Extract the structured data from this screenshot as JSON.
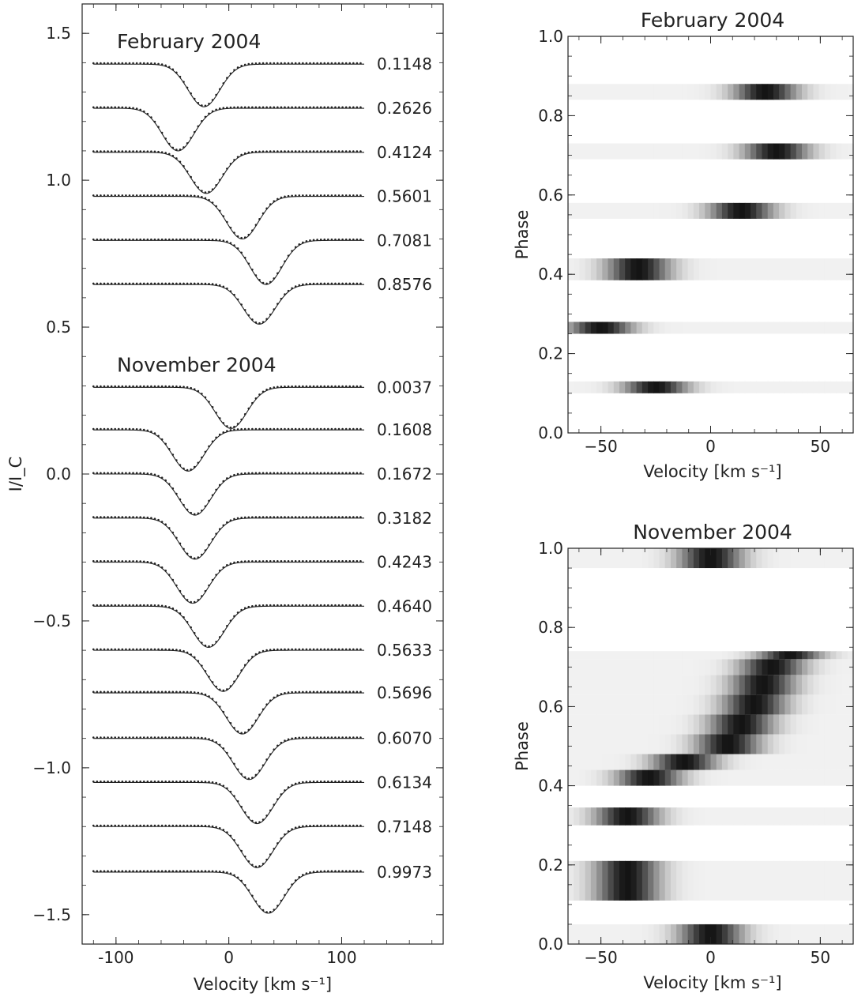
{
  "chart_data": [
    {
      "type": "line",
      "title": "",
      "xlabel": "Velocity [km s⁻¹]",
      "ylabel": "I/I_C",
      "xlim": [
        -130,
        190
      ],
      "ylim": [
        -1.6,
        1.6
      ],
      "x_ticks": [
        -100,
        0,
        100
      ],
      "y_ticks": [
        1.5,
        1.0,
        0.5,
        0.0,
        -0.5,
        -1.0,
        -1.5
      ],
      "y_tick_labels": [
        "1.5",
        "1.0",
        "0.5",
        "0.0",
        "−0.5",
        "−1.0",
        "−1.5"
      ],
      "grid": false,
      "profile_sigma_kms": 14,
      "groups": [
        {
          "label": "February 2004",
          "series": [
            {
              "name": "0.1148",
              "continuum": 1.395,
              "center": -22,
              "depth": 0.145
            },
            {
              "name": "0.2626",
              "continuum": 1.245,
              "center": -45,
              "depth": 0.145
            },
            {
              "name": "0.4124",
              "continuum": 1.095,
              "center": -20,
              "depth": 0.14
            },
            {
              "name": "0.5601",
              "continuum": 0.945,
              "center": 12,
              "depth": 0.145
            },
            {
              "name": "0.7081",
              "continuum": 0.795,
              "center": 33,
              "depth": 0.15
            },
            {
              "name": "0.8576",
              "continuum": 0.645,
              "center": 27,
              "depth": 0.135
            }
          ]
        },
        {
          "label": "November 2004",
          "series": [
            {
              "name": "0.0037",
              "continuum": 0.295,
              "center": 2,
              "depth": 0.14
            },
            {
              "name": "0.1608",
              "continuum": 0.15,
              "center": -36,
              "depth": 0.14
            },
            {
              "name": "0.1672",
              "continuum": 0.0,
              "center": -30,
              "depth": 0.14
            },
            {
              "name": "0.3182",
              "continuum": -0.15,
              "center": -30,
              "depth": 0.14
            },
            {
              "name": "0.4243",
              "continuum": -0.3,
              "center": -32,
              "depth": 0.14
            },
            {
              "name": "0.4640",
              "continuum": -0.45,
              "center": -18,
              "depth": 0.14
            },
            {
              "name": "0.5633",
              "continuum": -0.6,
              "center": -5,
              "depth": 0.14
            },
            {
              "name": "0.5696",
              "continuum": -0.745,
              "center": 12,
              "depth": 0.14
            },
            {
              "name": "0.6070",
              "continuum": -0.9,
              "center": 18,
              "depth": 0.14
            },
            {
              "name": "0.6134",
              "continuum": -1.05,
              "center": 25,
              "depth": 0.14
            },
            {
              "name": "0.7148",
              "continuum": -1.2,
              "center": 25,
              "depth": 0.14
            },
            {
              "name": "0.9973",
              "continuum": -1.355,
              "center": 35,
              "depth": 0.14
            }
          ]
        }
      ]
    },
    {
      "type": "heatmap",
      "title": "February 2004",
      "xlabel": "Velocity [km s⁻¹]",
      "ylabel": "Phase",
      "xlim": [
        -65,
        65
      ],
      "ylim": [
        0.0,
        1.0
      ],
      "x_ticks": [
        -50,
        0,
        50
      ],
      "x_tick_labels": [
        "−50",
        "0",
        "50"
      ],
      "y_ticks": [
        0.0,
        0.2,
        0.4,
        0.6,
        0.8,
        1.0
      ],
      "y_tick_labels": [
        "0.0",
        "0.2",
        "0.4",
        "0.6",
        "0.8",
        "1.0"
      ],
      "colormap": "grayscale (white = 0, black = max)",
      "band_width_kms": 10,
      "bands": [
        {
          "phase_min": 0.1,
          "phase_max": 0.13,
          "center": -25
        },
        {
          "phase_min": 0.25,
          "phase_max": 0.28,
          "center": -50
        },
        {
          "phase_min": 0.385,
          "phase_max": 0.44,
          "center": -33
        },
        {
          "phase_min": 0.54,
          "phase_max": 0.58,
          "center": 14
        },
        {
          "phase_min": 0.69,
          "phase_max": 0.73,
          "center": 30
        },
        {
          "phase_min": 0.84,
          "phase_max": 0.88,
          "center": 25
        }
      ]
    },
    {
      "type": "heatmap",
      "title": "November 2004",
      "xlabel": "Velocity [km s⁻¹]",
      "ylabel": "Phase",
      "xlim": [
        -65,
        65
      ],
      "ylim": [
        0.0,
        1.0
      ],
      "x_ticks": [
        -50,
        0,
        50
      ],
      "x_tick_labels": [
        "−50",
        "0",
        "50"
      ],
      "y_ticks": [
        0.0,
        0.2,
        0.4,
        0.6,
        0.8,
        1.0
      ],
      "y_tick_labels": [
        "0.0",
        "0.2",
        "0.4",
        "0.6",
        "0.8",
        "1.0"
      ],
      "colormap": "grayscale (white = 0, black = max)",
      "band_width_kms": 10,
      "bands": [
        {
          "phase_min": 0.0,
          "phase_max": 0.05,
          "center": 0
        },
        {
          "phase_min": 0.11,
          "phase_max": 0.21,
          "center": -38
        },
        {
          "phase_min": 0.3,
          "phase_max": 0.345,
          "center": -38
        },
        {
          "phase_min": 0.4,
          "phase_max": 0.44,
          "center": -28
        },
        {
          "phase_min": 0.44,
          "phase_max": 0.48,
          "center": -12
        },
        {
          "phase_min": 0.48,
          "phase_max": 0.53,
          "center": 8
        },
        {
          "phase_min": 0.53,
          "phase_max": 0.58,
          "center": 14
        },
        {
          "phase_min": 0.58,
          "phase_max": 0.63,
          "center": 20
        },
        {
          "phase_min": 0.63,
          "phase_max": 0.68,
          "center": 24
        },
        {
          "phase_min": 0.68,
          "phase_max": 0.72,
          "center": 28
        },
        {
          "phase_min": 0.72,
          "phase_max": 0.74,
          "center": 36
        },
        {
          "phase_min": 0.95,
          "phase_max": 1.0,
          "center": 0
        }
      ]
    }
  ]
}
